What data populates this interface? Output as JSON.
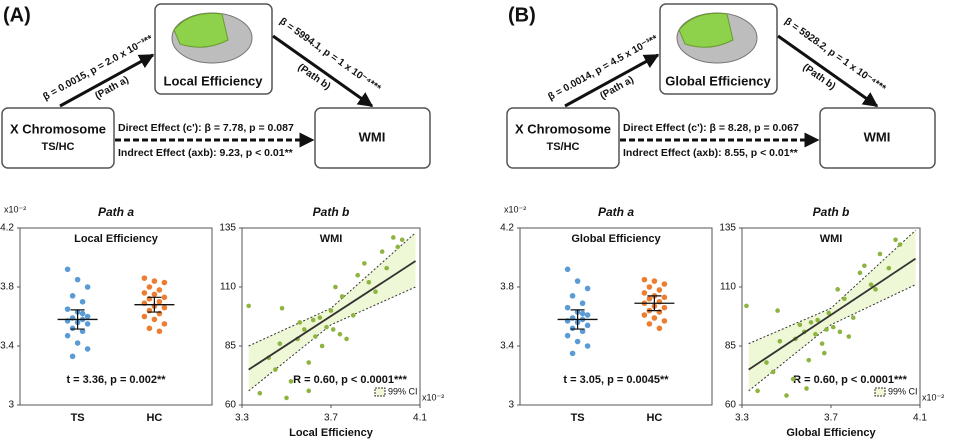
{
  "panels": [
    {
      "label": "(A)",
      "mediator": "Local Efficiency",
      "predictor": "X Chromosome",
      "predictor_sub": "TS/HC",
      "outcome": "WMI",
      "path_a_stat": "β = 0.0015, p = 2.0 x 10⁻³**",
      "path_a": "(Path a)",
      "path_b_stat": "β = 5994.1, p = 1 x 10⁻⁴***",
      "path_b": "(Path b)",
      "direct": "Direct Effect (c'): β = 7.78, p = 0.087",
      "indirect": "Indrect Effect (axb):  9.23, p < 0.01**"
    },
    {
      "label": "(B)",
      "mediator": "Global Efficiency",
      "predictor": "X Chromosome",
      "predictor_sub": "TS/HC",
      "outcome": "WMI",
      "path_a_stat": "β = 0.0014, p = 4.5 x 10⁻³**",
      "path_a": "(Path a)",
      "path_b_stat": "β = 5928.2, p = 1 x 10⁻⁴***",
      "path_b": "(Path b)",
      "direct": "Direct Effect (c'): β = 8.28, p = 0.067",
      "indirect": "Indrect Effect (axb): 8.55, p < 0.01**"
    }
  ],
  "chart_data": [
    {
      "type": "strip",
      "title": "Path a",
      "subtitle": "Local Efficiency",
      "y_unit": "x10⁻²",
      "annotation": "t = 3.36, p = 0.002**",
      "ylim": [
        3,
        4.2
      ],
      "yticks": [
        3,
        3.4,
        3.8,
        4.2
      ],
      "series": [
        {
          "name": "TS",
          "color": "#5b9bd5",
          "mean": 3.58,
          "error": 0.065,
          "values": [
            3.92,
            3.85,
            3.8,
            3.74,
            3.7,
            3.65,
            3.63,
            3.6,
            3.59,
            3.58,
            3.57,
            3.56,
            3.55,
            3.52,
            3.5,
            3.47,
            3.42,
            3.38,
            3.33,
            3.62
          ]
        },
        {
          "name": "HC",
          "color": "#ed7d31",
          "mean": 3.68,
          "error": 0.05,
          "values": [
            3.86,
            3.84,
            3.83,
            3.8,
            3.78,
            3.76,
            3.75,
            3.73,
            3.72,
            3.7,
            3.69,
            3.67,
            3.66,
            3.64,
            3.62,
            3.6,
            3.58,
            3.55,
            3.52,
            3.5
          ]
        }
      ]
    },
    {
      "type": "scatter",
      "title": "Path b",
      "subtitle": "WMI",
      "x_label": "Local Efficiency",
      "x_unit": "x10⁻²",
      "annotation": "R = 0.60, p < 0.0001***",
      "color": "#8db43e",
      "xlim": [
        3.3,
        4.1
      ],
      "xticks": [
        3.3,
        3.7,
        4.1
      ],
      "ylim": [
        60,
        135
      ],
      "yticks": [
        60,
        85,
        110,
        135
      ],
      "x": [
        3.33,
        3.38,
        3.42,
        3.45,
        3.47,
        3.5,
        3.52,
        3.55,
        3.56,
        3.58,
        3.6,
        3.62,
        3.63,
        3.65,
        3.66,
        3.68,
        3.7,
        3.71,
        3.72,
        3.74,
        3.75,
        3.77,
        3.8,
        3.82,
        3.85,
        3.87,
        3.9,
        3.93,
        3.95,
        3.98,
        4.0,
        4.02,
        3.48,
        3.6
      ],
      "values": [
        102,
        65,
        80,
        75,
        86,
        63,
        70,
        88,
        95,
        92,
        78,
        96,
        89,
        97,
        85,
        93,
        100,
        92,
        110,
        90,
        106,
        88,
        98,
        115,
        120,
        112,
        108,
        125,
        118,
        131,
        127,
        130,
        101,
        66
      ],
      "fit": {
        "x": [
          3.33,
          4.08
        ],
        "y": [
          75,
          121
        ]
      },
      "ci": {
        "name": "99% CI",
        "x": [
          3.33,
          3.7,
          4.08
        ],
        "upper": [
          85,
          101,
          133
        ],
        "lower": [
          66,
          94,
          110
        ]
      }
    },
    {
      "type": "strip",
      "title": "Path a",
      "subtitle": "Global Efficiency",
      "y_unit": "x10⁻²",
      "annotation": "t = 3.05, p = 0.0045**",
      "ylim": [
        3,
        4.2
      ],
      "yticks": [
        3,
        3.4,
        3.8,
        4.2
      ],
      "series": [
        {
          "name": "TS",
          "color": "#5b9bd5",
          "mean": 3.58,
          "error": 0.065,
          "values": [
            3.92,
            3.84,
            3.79,
            3.74,
            3.69,
            3.66,
            3.63,
            3.61,
            3.59,
            3.58,
            3.57,
            3.56,
            3.54,
            3.52,
            3.5,
            3.47,
            3.43,
            3.4,
            3.35,
            3.62
          ]
        },
        {
          "name": "HC",
          "color": "#ed7d31",
          "mean": 3.69,
          "error": 0.05,
          "values": [
            3.85,
            3.84,
            3.82,
            3.8,
            3.78,
            3.76,
            3.74,
            3.73,
            3.72,
            3.7,
            3.69,
            3.67,
            3.66,
            3.64,
            3.63,
            3.61,
            3.59,
            3.57,
            3.55,
            3.52
          ]
        }
      ]
    },
    {
      "type": "scatter",
      "title": "Path b",
      "subtitle": "WMI",
      "x_label": "Global Efficiency",
      "x_unit": "x10⁻²",
      "annotation": "R = 0.60, p < 0.0001***",
      "color": "#8db43e",
      "xlim": [
        3.3,
        4.1
      ],
      "xticks": [
        3.3,
        3.7,
        4.1
      ],
      "ylim": [
        60,
        135
      ],
      "yticks": [
        60,
        85,
        110,
        135
      ],
      "x": [
        3.32,
        3.37,
        3.41,
        3.44,
        3.47,
        3.5,
        3.53,
        3.54,
        3.56,
        3.58,
        3.6,
        3.61,
        3.63,
        3.64,
        3.66,
        3.68,
        3.69,
        3.71,
        3.73,
        3.74,
        3.76,
        3.78,
        3.8,
        3.83,
        3.85,
        3.88,
        3.9,
        3.92,
        3.96,
        3.99,
        4.01,
        3.46,
        3.59,
        3.67
      ],
      "values": [
        102,
        66,
        78,
        74,
        87,
        64,
        71,
        88,
        94,
        91,
        79,
        95,
        90,
        96,
        86,
        92,
        99,
        93,
        109,
        91,
        105,
        89,
        97,
        116,
        119,
        111,
        109,
        124,
        118,
        130,
        128,
        100,
        67,
        82
      ],
      "fit": {
        "x": [
          3.33,
          4.08
        ],
        "y": [
          75,
          122
        ]
      },
      "ci": {
        "name": "99% CI",
        "x": [
          3.33,
          3.7,
          4.08
        ],
        "upper": [
          86,
          101,
          134
        ],
        "lower": [
          66,
          94,
          111
        ]
      }
    }
  ]
}
